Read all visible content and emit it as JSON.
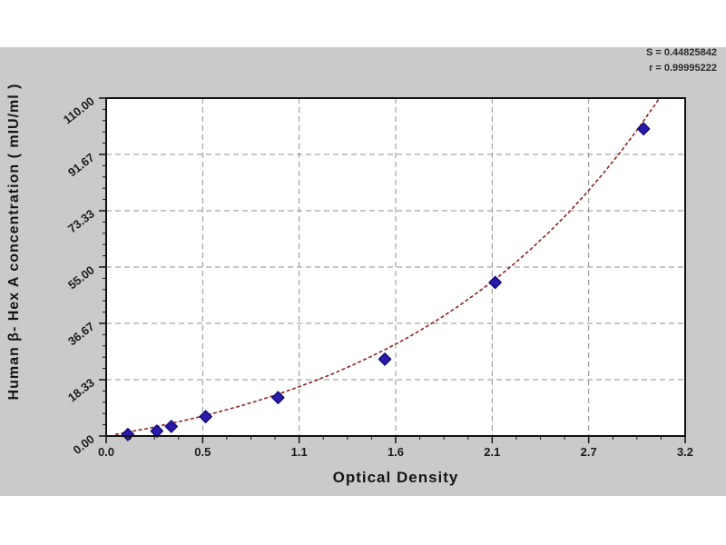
{
  "stats": {
    "s_label": "S = 0.44825842",
    "r_label": "r = 0.99995222"
  },
  "chart_data": {
    "type": "scatter",
    "title": "",
    "xlabel": "Optical Density",
    "ylabel": "Human β- Hex A  concentration ( mIU/ml )",
    "xlim": [
      0,
      3.2
    ],
    "ylim": [
      0,
      110
    ],
    "x_ticks": [
      0,
      0.5333,
      1.0667,
      1.6,
      2.1333,
      2.6667,
      3.2
    ],
    "x_tick_labels": [
      "0.0",
      "0.5",
      "1.1",
      "1.6",
      "2.1",
      "2.7",
      "3.2"
    ],
    "y_ticks": [
      0,
      18.333,
      36.667,
      55.0,
      73.333,
      91.667,
      110.0
    ],
    "y_tick_labels": [
      "0.00",
      "18.33",
      "36.67",
      "55.00",
      "73.33",
      "91.67",
      "110.00"
    ],
    "grid": true,
    "legend": "none",
    "fit": {
      "s": "0.44825842",
      "r": "0.99995222"
    },
    "series": [
      {
        "name": "standard-points",
        "type": "scatter",
        "marker": "diamond",
        "color": "#2a1aab",
        "edge_color": "#140d7a",
        "points": [
          [
            0.12,
            0.5
          ],
          [
            0.28,
            1.6
          ],
          [
            0.36,
            3.1
          ],
          [
            0.55,
            6.3
          ],
          [
            0.95,
            12.5
          ],
          [
            1.54,
            25.0
          ],
          [
            2.15,
            50.0
          ],
          [
            2.97,
            100.0
          ]
        ]
      },
      {
        "name": "fit-curve",
        "type": "line",
        "color": "#8b2424",
        "dash": "4 2.5",
        "points": [
          [
            0.05,
            0.5
          ],
          [
            0.15,
            1.6
          ],
          [
            0.25,
            2.7
          ],
          [
            0.35,
            4.0
          ],
          [
            0.45,
            5.3
          ],
          [
            0.55,
            6.7
          ],
          [
            0.65,
            8.3
          ],
          [
            0.75,
            9.9
          ],
          [
            0.85,
            11.7
          ],
          [
            0.95,
            13.6
          ],
          [
            1.05,
            15.7
          ],
          [
            1.15,
            17.9
          ],
          [
            1.25,
            20.2
          ],
          [
            1.35,
            22.8
          ],
          [
            1.45,
            25.5
          ],
          [
            1.55,
            28.4
          ],
          [
            1.65,
            31.5
          ],
          [
            1.75,
            34.9
          ],
          [
            1.85,
            38.5
          ],
          [
            1.95,
            42.4
          ],
          [
            2.05,
            46.6
          ],
          [
            2.15,
            51.0
          ],
          [
            2.25,
            55.8
          ],
          [
            2.35,
            61.0
          ],
          [
            2.45,
            66.5
          ],
          [
            2.55,
            72.4
          ],
          [
            2.65,
            78.8
          ],
          [
            2.75,
            85.7
          ],
          [
            2.85,
            93.0
          ],
          [
            2.95,
            100.9
          ],
          [
            3.05,
            109.3
          ],
          [
            3.12,
            115.0
          ]
        ]
      }
    ]
  }
}
